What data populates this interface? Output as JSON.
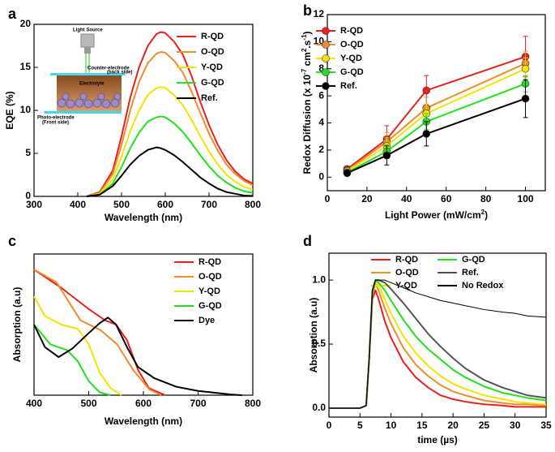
{
  "chart_data": [
    {
      "type": "line",
      "label": "a",
      "x_label": "Wavelength (nm)",
      "y_label": "EQE (%)",
      "xlim": [
        300,
        800
      ],
      "xticks": [
        300,
        400,
        500,
        600,
        700,
        800
      ],
      "ylim": [
        0,
        20
      ],
      "yticks": [
        0,
        5,
        10,
        15,
        20
      ],
      "x": [
        420,
        450,
        480,
        500,
        520,
        540,
        560,
        580,
        590,
        600,
        620,
        640,
        660,
        680,
        700,
        720,
        740,
        760,
        780,
        800
      ],
      "series": [
        {
          "name": "R-QD",
          "color": "#e8201e",
          "values": [
            0,
            0.5,
            3,
            7,
            11.5,
            15,
            17.5,
            18.9,
            19.1,
            19,
            18,
            16.5,
            14,
            11,
            8.3,
            6,
            4.2,
            2.9,
            2,
            1.5
          ]
        },
        {
          "name": "O-QD",
          "color": "#f08c2c",
          "values": [
            0,
            0.4,
            2.6,
            6,
            10,
            13.3,
            15.5,
            16.6,
            16.8,
            16.7,
            15.8,
            14.4,
            12.2,
            9.7,
            7.3,
            5.3,
            3.7,
            2.6,
            1.8,
            1.3
          ]
        },
        {
          "name": "Y-QD",
          "color": "#f2e400",
          "values": [
            0,
            0.3,
            2,
            4.6,
            7.6,
            10,
            11.8,
            12.6,
            12.7,
            12.6,
            11.8,
            10.6,
            8.9,
            7,
            5.2,
            3.7,
            2.5,
            1.7,
            1.1,
            0.8
          ]
        },
        {
          "name": "G-QD",
          "color": "#22e01e",
          "values": [
            0,
            0.2,
            1.5,
            3.4,
            5.6,
            7.4,
            8.7,
            9.2,
            9.3,
            9.2,
            8.5,
            7.5,
            6.2,
            4.8,
            3.5,
            2.4,
            1.6,
            1,
            0.6,
            0.4
          ]
        },
        {
          "name": "Ref.",
          "color": "#000000",
          "values": [
            0,
            0.2,
            1.2,
            2.4,
            3.7,
            4.7,
            5.4,
            5.7,
            5.6,
            5.4,
            4.8,
            4,
            3.1,
            2.2,
            1.5,
            0.9,
            0.5,
            0.3,
            0.1,
            0.05
          ]
        }
      ],
      "annotations": [
        "Light Source",
        "Counter-electrode",
        "(back side)",
        "Electrolyte",
        "Photo-electrode",
        "(Front side)"
      ]
    },
    {
      "type": "line",
      "label": "b",
      "x_label": [
        "Light Power (mW/cm",
        "2",
        ")"
      ],
      "y_label": [
        "Redox Diffusion (x 10",
        "-7",
        " cm",
        "2",
        ".s",
        "-1",
        ")"
      ],
      "xlim": [
        0,
        110
      ],
      "xticks": [
        0,
        20,
        40,
        60,
        80,
        100
      ],
      "ylim": [
        -1,
        12
      ],
      "yticks": [
        0,
        2,
        4,
        6,
        8,
        10,
        12
      ],
      "markers": true,
      "x": [
        10,
        30,
        50,
        100
      ],
      "series": [
        {
          "name": "R-QD",
          "color": "#e8201e",
          "values": [
            0.6,
            2.8,
            6.4,
            8.9
          ],
          "errors": [
            0.2,
            1.0,
            1.1,
            1.5
          ]
        },
        {
          "name": "O-QD",
          "color": "#f08c2c",
          "values": [
            0.5,
            2.6,
            5.1,
            8.4
          ],
          "errors": [
            0.2,
            0.7,
            0.8,
            0.9
          ]
        },
        {
          "name": "Y-QD",
          "color": "#f2e400",
          "values": [
            0.45,
            2.3,
            4.7,
            8.0
          ],
          "errors": [
            0.15,
            0.6,
            0.7,
            0.8
          ]
        },
        {
          "name": "G-QD",
          "color": "#22e01e",
          "values": [
            0.35,
            1.9,
            4.1,
            6.9
          ],
          "errors": [
            0.15,
            0.5,
            0.6,
            0.6
          ]
        },
        {
          "name": "Ref.",
          "color": "#000000",
          "values": [
            0.3,
            1.6,
            3.2,
            5.8
          ],
          "errors": [
            0.1,
            0.7,
            0.9,
            1.4
          ]
        }
      ]
    },
    {
      "type": "line",
      "label": "c",
      "x_label": "Wavelength (nm)",
      "y_label": "Absorption (a.u)",
      "xlim": [
        400,
        800
      ],
      "xticks": [
        400,
        500,
        600,
        700,
        800
      ],
      "ylim": [
        0,
        1
      ],
      "series": [
        {
          "name": "R-QD",
          "color": "#e8201e",
          "x": [
            400,
            450,
            500,
            530,
            550,
            570,
            590,
            610,
            640
          ],
          "values": [
            0.89,
            0.76,
            0.61,
            0.53,
            0.5,
            0.39,
            0.18,
            0.05,
            0
          ]
        },
        {
          "name": "O-QD",
          "color": "#f08c2c",
          "x": [
            400,
            441,
            485,
            522,
            552,
            581,
            611,
            633
          ],
          "values": [
            0.89,
            0.8,
            0.53,
            0.46,
            0.36,
            0.18,
            0.04,
            0
          ]
        },
        {
          "name": "Y-QD",
          "color": "#f2e400",
          "x": [
            400,
            420,
            450,
            480,
            500,
            520,
            540,
            560
          ],
          "values": [
            0.7,
            0.56,
            0.5,
            0.47,
            0.36,
            0.16,
            0.05,
            0
          ]
        },
        {
          "name": "G-QD",
          "color": "#22e01e",
          "x": [
            400,
            430,
            460,
            480,
            500,
            520,
            540
          ],
          "values": [
            0.5,
            0.36,
            0.32,
            0.24,
            0.1,
            0.02,
            0
          ]
        },
        {
          "name": "Dye",
          "color": "#000000",
          "x": [
            400,
            420,
            445,
            470,
            500,
            520,
            535,
            550,
            570,
            590,
            620,
            660,
            700,
            760,
            780
          ],
          "values": [
            0.5,
            0.34,
            0.27,
            0.33,
            0.44,
            0.51,
            0.55,
            0.5,
            0.34,
            0.2,
            0.12,
            0.06,
            0.03,
            0.005,
            0
          ]
        }
      ]
    },
    {
      "type": "line",
      "label": "d",
      "x_label": "time (µs)",
      "y_label": "Absorption (a.u)",
      "xlim": [
        0,
        35
      ],
      "xticks": [
        0,
        5,
        10,
        15,
        20,
        25,
        30,
        35
      ],
      "ylim": [
        -0.07,
        1.21
      ],
      "yticks": [
        {
          "value": 0,
          "label": "0.0"
        },
        {
          "value": 0.5,
          "label": "0.5"
        },
        {
          "value": 1,
          "label": "1.0"
        }
      ],
      "x": [
        0,
        5,
        6,
        6.5,
        7,
        7.5,
        8,
        9,
        10,
        12,
        14,
        16,
        18,
        20,
        22,
        25,
        28,
        30,
        32,
        35
      ],
      "series": [
        {
          "name": "R-QD",
          "color": "#e8201e",
          "values": [
            0,
            0,
            0.02,
            0.4,
            0.85,
            0.92,
            0.85,
            0.68,
            0.55,
            0.36,
            0.24,
            0.16,
            0.1,
            0.07,
            0.05,
            0.03,
            0.02,
            0.01,
            0.01,
            0.01
          ]
        },
        {
          "name": "O-QD",
          "color": "#f08c2c",
          "values": [
            0,
            0,
            0.02,
            0.4,
            0.88,
            0.97,
            0.92,
            0.78,
            0.66,
            0.47,
            0.34,
            0.25,
            0.18,
            0.13,
            0.1,
            0.06,
            0.04,
            0.03,
            0.03,
            0.02
          ]
        },
        {
          "name": "Y-QD",
          "color": "#f2e400",
          "values": [
            0,
            0,
            0.02,
            0.4,
            0.9,
            1.0,
            0.96,
            0.85,
            0.74,
            0.56,
            0.43,
            0.33,
            0.25,
            0.19,
            0.15,
            0.1,
            0.07,
            0.05,
            0.04,
            0.03
          ]
        },
        {
          "name": "G-QD",
          "color": "#22e01e",
          "values": [
            0,
            0,
            0.02,
            0.4,
            0.9,
            1.0,
            0.98,
            0.92,
            0.84,
            0.69,
            0.56,
            0.46,
            0.38,
            0.3,
            0.24,
            0.17,
            0.12,
            0.1,
            0.08,
            0.06
          ]
        },
        {
          "name": "Ref.",
          "color": "#555555",
          "values": [
            0,
            0,
            0.02,
            0.4,
            0.92,
            1.0,
            1.0,
            0.98,
            0.93,
            0.82,
            0.7,
            0.58,
            0.48,
            0.39,
            0.31,
            0.22,
            0.16,
            0.13,
            0.1,
            0.08
          ]
        },
        {
          "name": "No Redox",
          "color": "#000000",
          "values": [
            0,
            0,
            0.02,
            0.4,
            0.92,
            1.0,
            1.0,
            1.0,
            0.98,
            0.94,
            0.9,
            0.87,
            0.84,
            0.82,
            0.8,
            0.77,
            0.75,
            0.74,
            0.72,
            0.71
          ]
        }
      ]
    }
  ]
}
